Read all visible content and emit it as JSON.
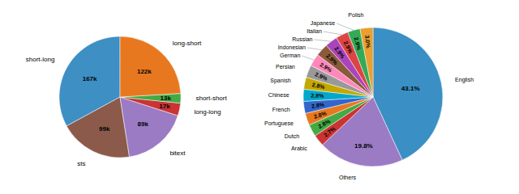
{
  "chart_data": [
    {
      "type": "pie",
      "categories": [
        "short-long",
        "sts",
        "bitext",
        "long-long",
        "short-short",
        "long-short"
      ],
      "values": [
        167,
        99,
        89,
        17,
        13,
        122
      ],
      "value_labels": [
        "167k",
        "99k",
        "89k",
        "17k",
        "13k",
        "122k"
      ],
      "colors": [
        "#3d8fc4",
        "#8b5a4a",
        "#9b7bc4",
        "#cc3333",
        "#44aa44",
        "#e87820"
      ],
      "data_labels": true
    },
    {
      "type": "pie",
      "categories": [
        "English",
        "Others",
        "Arabic",
        "Dutch",
        "Portuguese",
        "French",
        "Chinese",
        "Spanish",
        "Persian",
        "German",
        "Indonesian",
        "Russian",
        "Italian",
        "Japanese",
        "Polish"
      ],
      "values": [
        43.1,
        19.8,
        2.7,
        2.8,
        2.8,
        2.8,
        2.8,
        2.8,
        2.9,
        2.9,
        2.9,
        2.9,
        2.9,
        2.9,
        3.0
      ],
      "value_labels": [
        "43.1%",
        "19.8%",
        "2.7%",
        "2.8%",
        "2.8%",
        "2.8%",
        "2.8%",
        "2.8%",
        "2.9%",
        "2.9%",
        "2.9%",
        "2.9%",
        "2.9%",
        "2.9%",
        "3.0%"
      ],
      "colors": [
        "#3a8fc4",
        "#9b7bc4",
        "#cc3333",
        "#44aa44",
        "#e87820",
        "#3366cc",
        "#00a8cc",
        "#c4a800",
        "#999999",
        "#ff88bb",
        "#8b5a3a",
        "#aa44bb",
        "#dd4444",
        "#33aa55",
        "#e8a030"
      ],
      "data_labels": true
    }
  ]
}
